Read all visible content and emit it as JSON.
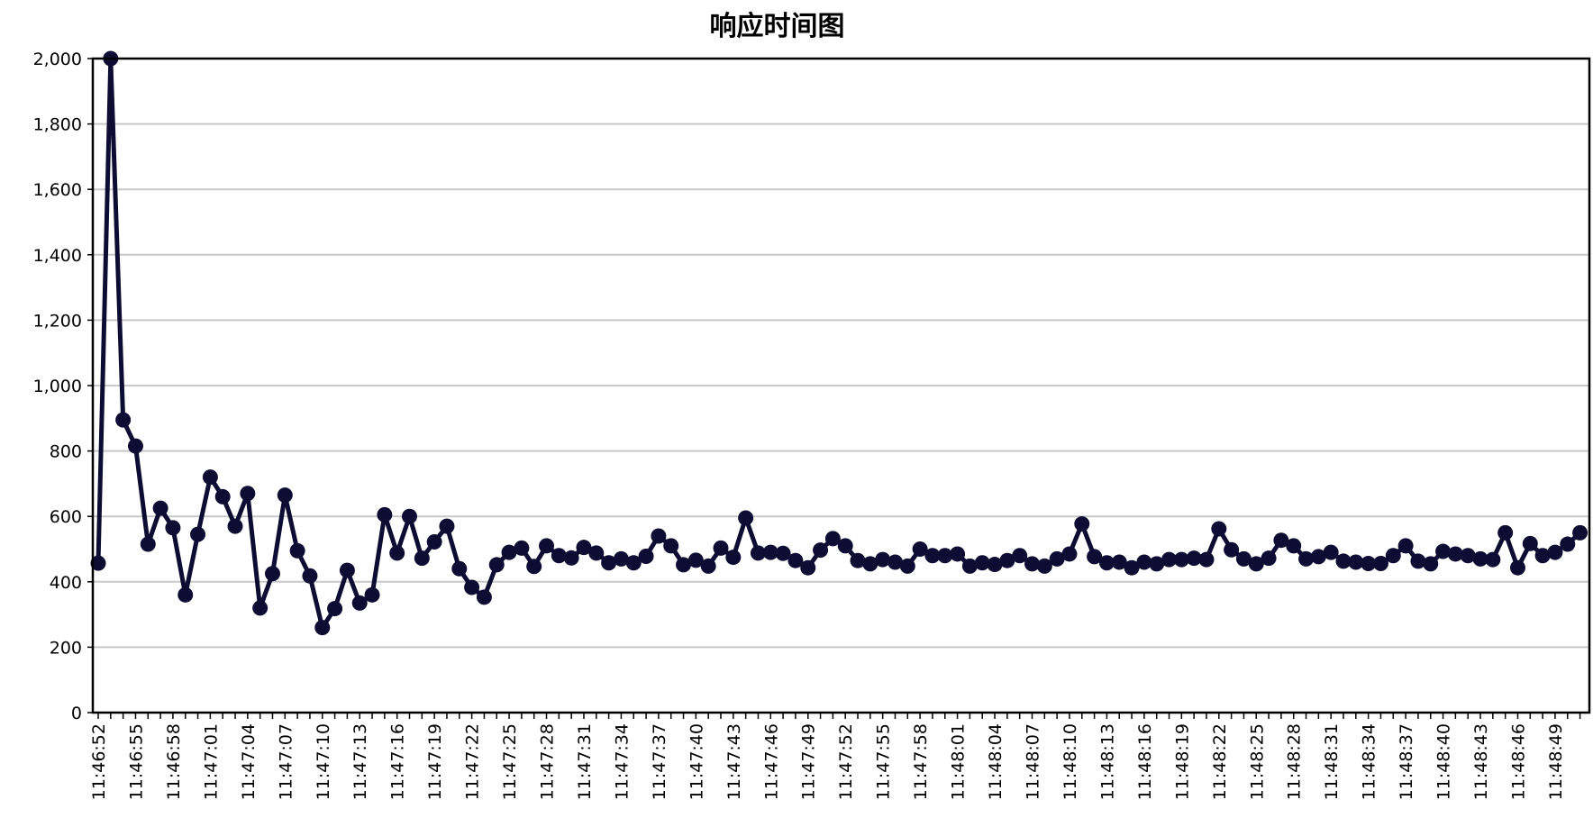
{
  "chart_data": {
    "type": "line",
    "title": "响应时间图",
    "xlabel": "",
    "ylabel": "",
    "ylim": [
      0,
      2000
    ],
    "yticks": [
      0,
      200,
      400,
      600,
      800,
      1000,
      1200,
      1400,
      1600,
      1800,
      2000
    ],
    "ytick_labels": [
      "0",
      "200",
      "400",
      "600",
      "800",
      "1,000",
      "1,200",
      "1,400",
      "1,600",
      "1,800",
      "2,000"
    ],
    "grid": "horizontal",
    "x_start": "11:46:52",
    "x_step_seconds": 1,
    "xtick_every": 3,
    "xtick_labels": [
      "11:46:52",
      "11:46:55",
      "11:46:58",
      "11:47:01",
      "11:47:04",
      "11:47:07",
      "11:47:10",
      "11:47:13",
      "11:47:16",
      "11:47:19",
      "11:47:22",
      "11:47:25",
      "11:47:28",
      "11:47:31",
      "11:47:34",
      "11:47:37",
      "11:47:40",
      "11:47:43",
      "11:47:46",
      "11:47:49",
      "11:47:52",
      "11:47:55",
      "11:47:58",
      "11:48:01",
      "11:48:04",
      "11:48:07",
      "11:48:10",
      "11:48:13",
      "11:48:16",
      "11:48:19",
      "11:48:22",
      "11:48:25",
      "11:48:28",
      "11:48:31",
      "11:48:34",
      "11:48:37",
      "11:48:40",
      "11:48:43",
      "11:48:46",
      "11:48:49"
    ],
    "colors": {
      "line": "#0f0c33",
      "grid": "#c8c8c8",
      "axis": "#000000"
    },
    "series": [
      {
        "values": [
          457,
          2000,
          895,
          815,
          515,
          625,
          565,
          360,
          545,
          720,
          660,
          570,
          670,
          320,
          425,
          665,
          495,
          418,
          260,
          318,
          435,
          335,
          360,
          605,
          488,
          600,
          472,
          522,
          570,
          440,
          383,
          353,
          452,
          490,
          503,
          447,
          510,
          480,
          473,
          505,
          488,
          458,
          470,
          458,
          478,
          540,
          510,
          452,
          466,
          448,
          503,
          475,
          595,
          488,
          490,
          487,
          465,
          443,
          497,
          532,
          510,
          465,
          455,
          468,
          460,
          448,
          500,
          480,
          480,
          485,
          448,
          458,
          453,
          465,
          480,
          455,
          448,
          470,
          485,
          577,
          477,
          458,
          460,
          443,
          460,
          455,
          468,
          468,
          472,
          468,
          562,
          498,
          470,
          455,
          472,
          527,
          510,
          470,
          477,
          490,
          463,
          460,
          456,
          456,
          480,
          510,
          463,
          455,
          493,
          485,
          480,
          470,
          468,
          550,
          443,
          517,
          480,
          490,
          515,
          550
        ]
      }
    ]
  }
}
